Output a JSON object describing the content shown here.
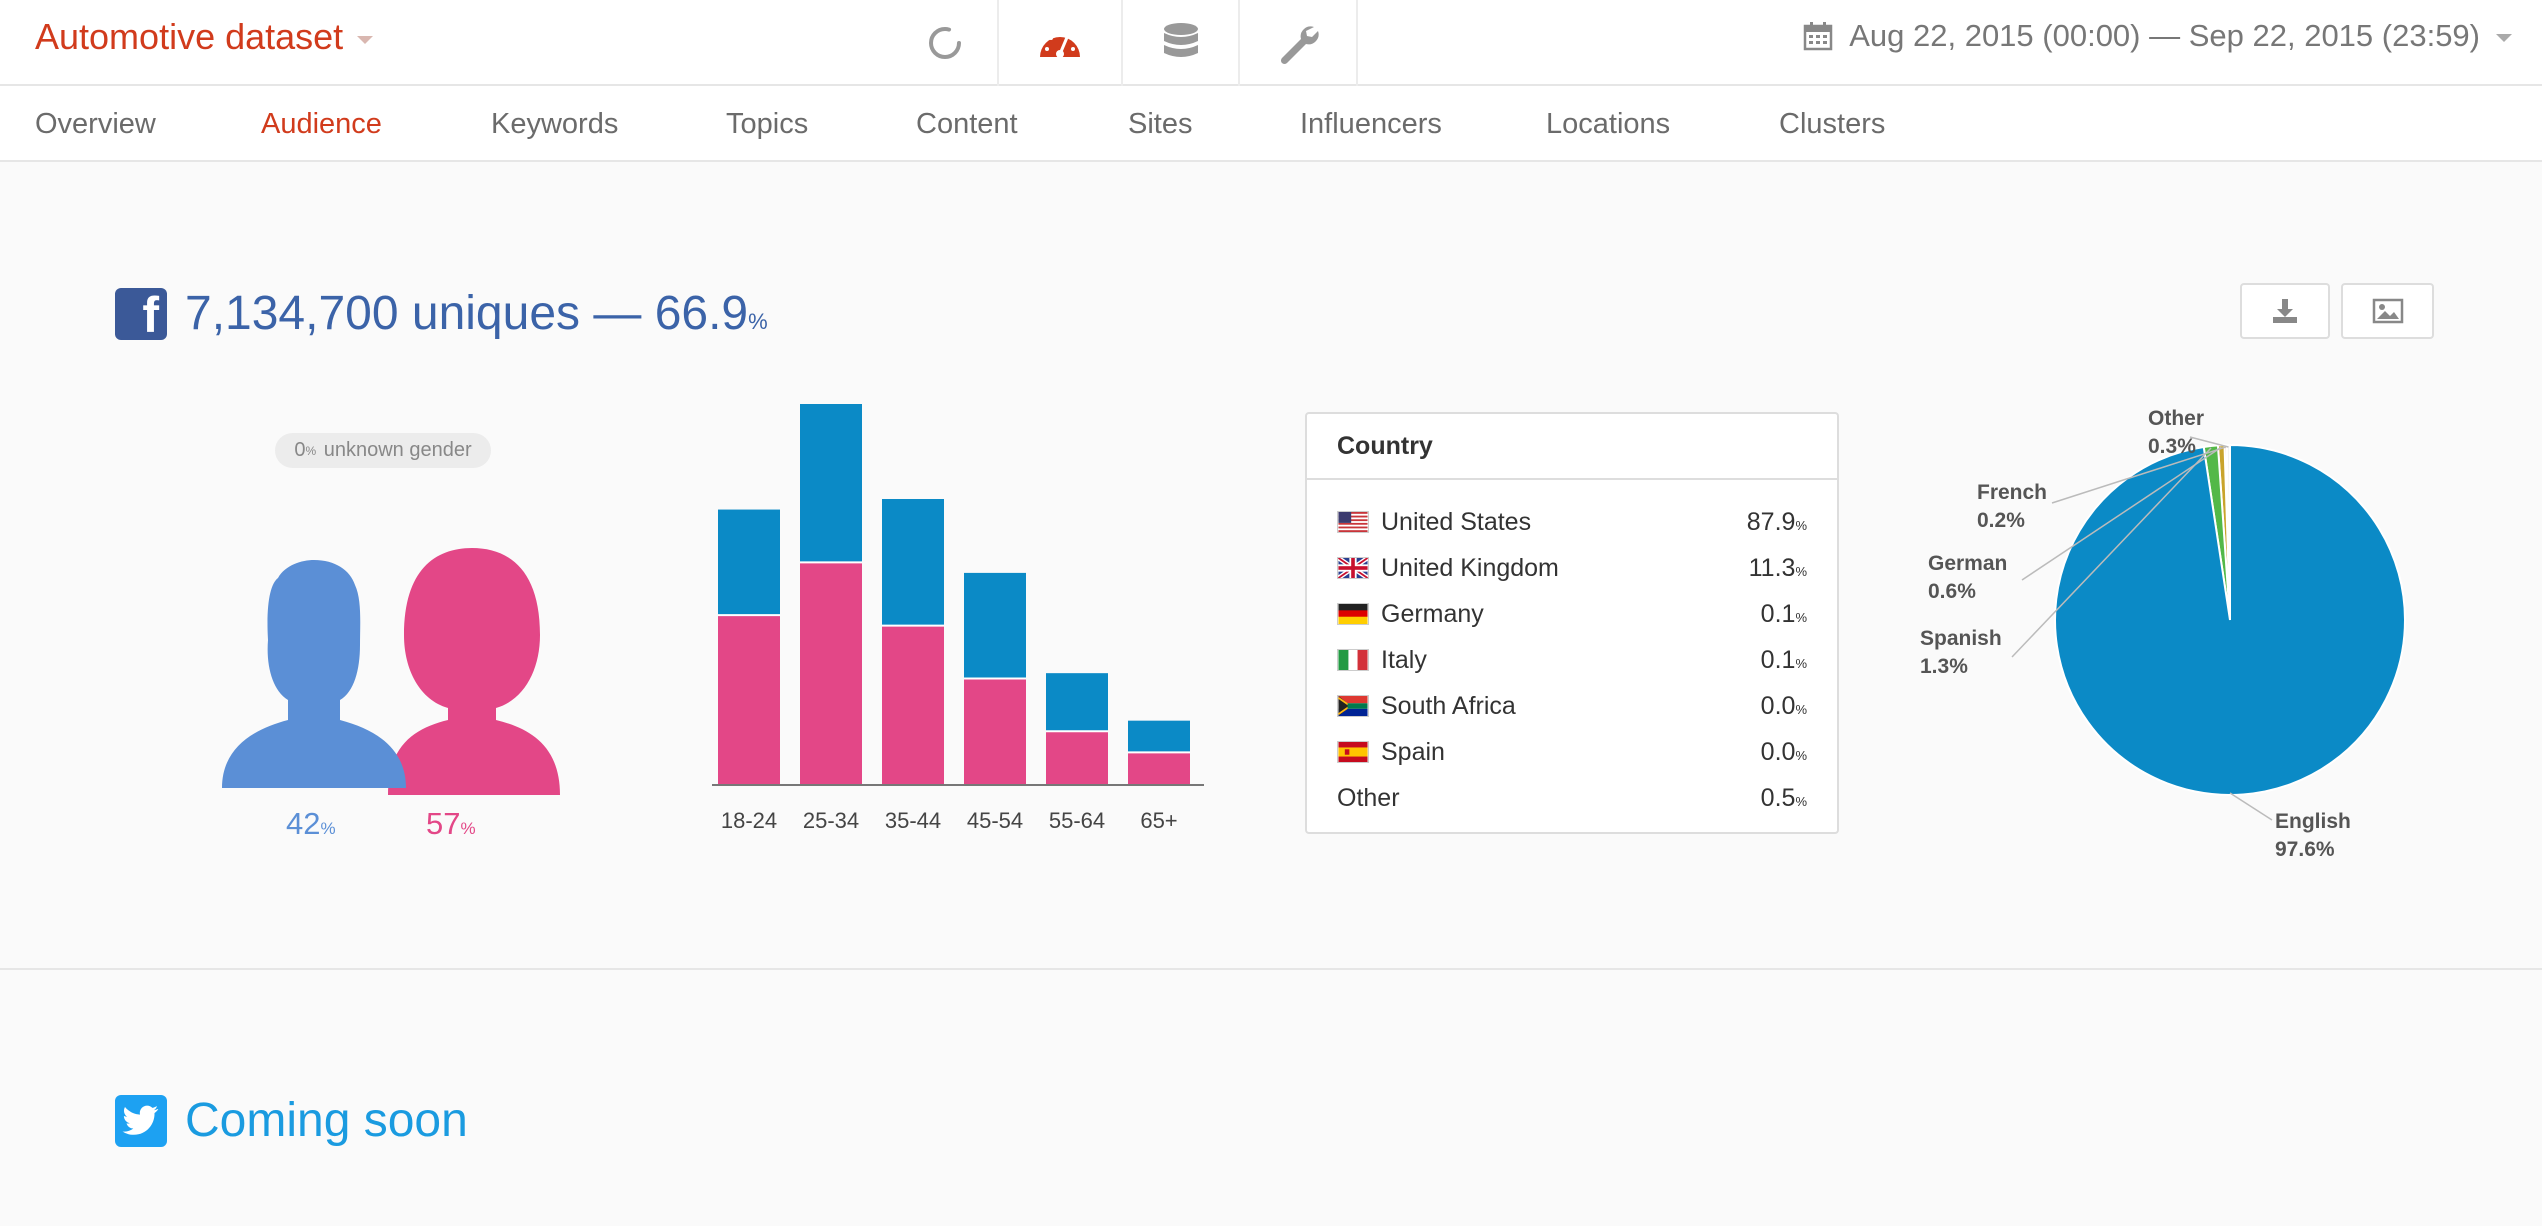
{
  "header": {
    "dataset_name": "Automotive dataset",
    "date_range": "Aug 22, 2015 (00:00) — Sep 22, 2015 (23:59)",
    "toolbar_icons": [
      "spinner-icon",
      "dashboard-icon",
      "database-icon",
      "wrench-icon"
    ],
    "active_tool": "dashboard-icon"
  },
  "tabs": [
    "Overview",
    "Audience",
    "Keywords",
    "Topics",
    "Content",
    "Sites",
    "Influencers",
    "Locations",
    "Clusters"
  ],
  "active_tab": "Audience",
  "colors": {
    "accent": "#d13b1c",
    "male": "#5b8fd6",
    "female": "#e34787",
    "age_top": "#0b8ac6",
    "age_bottom": "#e34787",
    "facebook": "#3b5998",
    "twitter": "#1da1f2"
  },
  "facebook": {
    "uniques_text": "7,134,700 uniques — 66.9",
    "uniques_unit": "%",
    "unknown_gender_value": "0",
    "unknown_gender_unit": "%",
    "unknown_gender_label": "unknown gender",
    "male_value": "42",
    "female_value": "57",
    "unit": "%"
  },
  "country_table": {
    "title": "Country",
    "rows": [
      {
        "flag": "us",
        "name": "United States",
        "value": "87.9"
      },
      {
        "flag": "gb",
        "name": "United Kingdom",
        "value": "11.3"
      },
      {
        "flag": "de",
        "name": "Germany",
        "value": "0.1"
      },
      {
        "flag": "it",
        "name": "Italy",
        "value": "0.1"
      },
      {
        "flag": "za",
        "name": "South Africa",
        "value": "0.0"
      },
      {
        "flag": "es",
        "name": "Spain",
        "value": "0.0"
      },
      {
        "flag": "",
        "name": "Other",
        "value": "0.5"
      }
    ],
    "unit": "%"
  },
  "chart_data": [
    {
      "type": "bar",
      "stacked": true,
      "categories": [
        "18-24",
        "25-34",
        "35-44",
        "45-54",
        "55-64",
        "65+"
      ],
      "series": [
        {
          "values": [
            16,
            21,
            15,
            10,
            5,
            3
          ]
        },
        {
          "values": [
            10,
            15,
            12,
            10,
            5.5,
            3
          ]
        }
      ],
      "ylim": [
        0,
        36
      ],
      "grid": false
    },
    {
      "type": "pie",
      "labels": [
        "English",
        "Spanish",
        "German",
        "French",
        "Other"
      ],
      "values": [
        97.6,
        1.3,
        0.6,
        0.2,
        0.3
      ],
      "display": [
        "97.6%",
        "1.3%",
        "0.6%",
        "0.2%",
        "0.3%"
      ],
      "colors": [
        "#0b8ac6",
        "#53b848",
        "#c9a42c",
        "#e86a2a",
        "#f2f2f2"
      ]
    }
  ],
  "twitter": {
    "title": "Coming soon"
  }
}
